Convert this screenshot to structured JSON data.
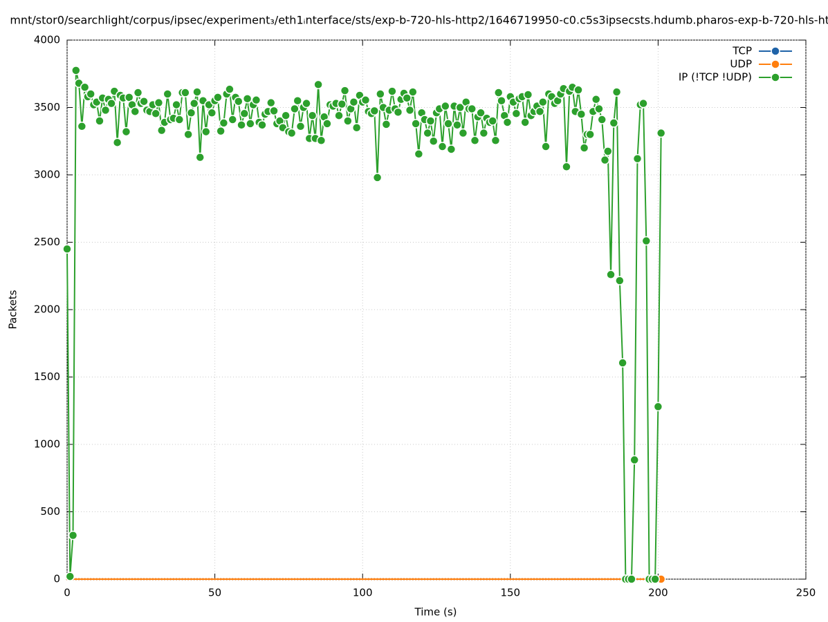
{
  "chart_data": {
    "type": "line",
    "title": "mnt/stor0/searchlight/corpus/ipsec/experiment₃/eth1ᵢnterface/sts/exp-b-720-hls-http2/1646719950-c0.c5s3ipsecsts.hdumb.pharos-exp-b-720-hls-http2",
    "x_label": "Time (s)",
    "y_label": "Packets",
    "xlim": [
      0,
      250
    ],
    "ylim": [
      0,
      4000
    ],
    "xticks": [
      0,
      50,
      100,
      150,
      200,
      250
    ],
    "yticks": [
      0,
      500,
      1000,
      1500,
      2000,
      2500,
      3000,
      3500,
      4000
    ],
    "grid": true,
    "legend": "top-right",
    "x": [
      0,
      1,
      2,
      3,
      4,
      5,
      6,
      7,
      8,
      9,
      10,
      11,
      12,
      13,
      14,
      15,
      16,
      17,
      18,
      19,
      20,
      21,
      22,
      23,
      24,
      25,
      26,
      27,
      28,
      29,
      30,
      31,
      32,
      33,
      34,
      35,
      36,
      37,
      38,
      39,
      40,
      41,
      42,
      43,
      44,
      45,
      46,
      47,
      48,
      49,
      50,
      51,
      52,
      53,
      54,
      55,
      56,
      57,
      58,
      59,
      60,
      61,
      62,
      63,
      64,
      65,
      66,
      67,
      68,
      69,
      70,
      71,
      72,
      73,
      74,
      75,
      76,
      77,
      78,
      79,
      80,
      81,
      82,
      83,
      84,
      85,
      86,
      87,
      88,
      89,
      90,
      91,
      92,
      93,
      94,
      95,
      96,
      97,
      98,
      99,
      100,
      101,
      102,
      103,
      104,
      105,
      106,
      107,
      108,
      109,
      110,
      111,
      112,
      113,
      114,
      115,
      116,
      117,
      118,
      119,
      120,
      121,
      122,
      123,
      124,
      125,
      126,
      127,
      128,
      129,
      130,
      131,
      132,
      133,
      134,
      135,
      136,
      137,
      138,
      139,
      140,
      141,
      142,
      143,
      144,
      145,
      146,
      147,
      148,
      149,
      150,
      151,
      152,
      153,
      154,
      155,
      156,
      157,
      158,
      159,
      160,
      161,
      162,
      163,
      164,
      165,
      166,
      167,
      168,
      169,
      170,
      171,
      172,
      173,
      174,
      175,
      176,
      177,
      178,
      179,
      180,
      181,
      182,
      183,
      184,
      185,
      186,
      187,
      188,
      189,
      190,
      191,
      192,
      193,
      194,
      195,
      196,
      197,
      198,
      199,
      200,
      201
    ],
    "series": [
      {
        "name": "TCP",
        "color": "#1f63a8",
        "values": [
          0,
          0,
          0,
          0,
          0,
          0,
          0,
          0,
          0,
          0,
          0,
          0,
          0,
          0,
          0,
          0,
          0,
          0,
          0,
          0,
          0,
          0,
          0,
          0,
          0,
          0,
          0,
          0,
          0,
          0,
          0,
          0,
          0,
          0,
          0,
          0,
          0,
          0,
          0,
          0,
          0,
          0,
          0,
          0,
          0,
          0,
          0,
          0,
          0,
          0,
          0,
          0,
          0,
          0,
          0,
          0,
          0,
          0,
          0,
          0,
          0,
          0,
          0,
          0,
          0,
          0,
          0,
          0,
          0,
          0,
          0,
          0,
          0,
          0,
          0,
          0,
          0,
          0,
          0,
          0,
          0,
          0,
          0,
          0,
          0,
          0,
          0,
          0,
          0,
          0,
          0,
          0,
          0,
          0,
          0,
          0,
          0,
          0,
          0,
          0,
          0,
          0,
          0,
          0,
          0,
          0,
          0,
          0,
          0,
          0,
          0,
          0,
          0,
          0,
          0,
          0,
          0,
          0,
          0,
          0,
          0,
          0,
          0,
          0,
          0,
          0,
          0,
          0,
          0,
          0,
          0,
          0,
          0,
          0,
          0,
          0,
          0,
          0,
          0,
          0,
          0,
          0,
          0,
          0,
          0,
          0,
          0,
          0,
          0,
          0,
          0,
          0,
          0,
          0,
          0,
          0,
          0,
          0,
          0,
          0,
          0,
          0,
          0,
          0,
          0,
          0,
          0,
          0,
          0,
          0,
          0,
          0,
          0,
          0,
          0,
          0,
          0,
          0,
          0,
          0,
          0,
          0,
          0,
          0,
          0,
          0,
          0,
          0,
          0,
          0,
          0,
          0,
          0,
          0,
          0,
          0,
          0,
          0,
          0,
          0,
          0,
          0
        ]
      },
      {
        "name": "UDP",
        "color": "#ff7f0e",
        "values": [
          0,
          0,
          0,
          0,
          0,
          0,
          0,
          0,
          0,
          0,
          0,
          0,
          0,
          0,
          0,
          0,
          0,
          0,
          0,
          0,
          0,
          0,
          0,
          0,
          0,
          0,
          0,
          0,
          0,
          0,
          0,
          0,
          0,
          0,
          0,
          0,
          0,
          0,
          0,
          0,
          0,
          0,
          0,
          0,
          0,
          0,
          0,
          0,
          0,
          0,
          0,
          0,
          0,
          0,
          0,
          0,
          0,
          0,
          0,
          0,
          0,
          0,
          0,
          0,
          0,
          0,
          0,
          0,
          0,
          0,
          0,
          0,
          0,
          0,
          0,
          0,
          0,
          0,
          0,
          0,
          0,
          0,
          0,
          0,
          0,
          0,
          0,
          0,
          0,
          0,
          0,
          0,
          0,
          0,
          0,
          0,
          0,
          0,
          0,
          0,
          0,
          0,
          0,
          0,
          0,
          0,
          0,
          0,
          0,
          0,
          0,
          0,
          0,
          0,
          0,
          0,
          0,
          0,
          0,
          0,
          0,
          0,
          0,
          0,
          0,
          0,
          0,
          0,
          0,
          0,
          0,
          0,
          0,
          0,
          0,
          0,
          0,
          0,
          0,
          0,
          0,
          0,
          0,
          0,
          0,
          0,
          0,
          0,
          0,
          0,
          0,
          0,
          0,
          0,
          0,
          0,
          0,
          0,
          0,
          0,
          0,
          0,
          0,
          0,
          0,
          0,
          0,
          0,
          0,
          0,
          0,
          0,
          0,
          0,
          0,
          0,
          0,
          0,
          0,
          0,
          0,
          0,
          0,
          0,
          0,
          0,
          0,
          0,
          0,
          0,
          0,
          0,
          0,
          0,
          0,
          0,
          0,
          0,
          0,
          0,
          0,
          0
        ]
      },
      {
        "name": "IP (!TCP  !UDP)",
        "color": "#2ca02c",
        "values": [
          2450,
          20,
          325,
          3775,
          3680,
          3360,
          3650,
          3580,
          3600,
          3520,
          3540,
          3400,
          3570,
          3480,
          3560,
          3530,
          3620,
          3240,
          3590,
          3570,
          3320,
          3575,
          3520,
          3470,
          3610,
          3530,
          3545,
          3480,
          3470,
          3520,
          3455,
          3535,
          3330,
          3390,
          3600,
          3410,
          3420,
          3520,
          3410,
          3610,
          3610,
          3300,
          3460,
          3530,
          3615,
          3130,
          3550,
          3320,
          3520,
          3460,
          3550,
          3575,
          3325,
          3385,
          3600,
          3635,
          3410,
          3575,
          3545,
          3370,
          3455,
          3565,
          3380,
          3520,
          3555,
          3390,
          3370,
          3450,
          3470,
          3535,
          3475,
          3380,
          3400,
          3350,
          3440,
          3320,
          3310,
          3490,
          3550,
          3360,
          3500,
          3530,
          3270,
          3440,
          3270,
          3670,
          3255,
          3430,
          3380,
          3520,
          3510,
          3530,
          3440,
          3525,
          3625,
          3400,
          3490,
          3540,
          3350,
          3590,
          3540,
          3555,
          3470,
          3455,
          3475,
          2980,
          3600,
          3500,
          3375,
          3480,
          3620,
          3490,
          3465,
          3560,
          3605,
          3570,
          3480,
          3615,
          3380,
          3155,
          3460,
          3410,
          3310,
          3400,
          3250,
          3460,
          3490,
          3210,
          3510,
          3380,
          3190,
          3510,
          3370,
          3500,
          3310,
          3540,
          3490,
          3490,
          3255,
          3430,
          3460,
          3310,
          3420,
          3390,
          3400,
          3255,
          3610,
          3550,
          3440,
          3390,
          3580,
          3540,
          3455,
          3565,
          3580,
          3390,
          3595,
          3440,
          3470,
          3510,
          3470,
          3540,
          3210,
          3600,
          3580,
          3530,
          3550,
          3600,
          3640,
          3060,
          3620,
          3650,
          3470,
          3630,
          3450,
          3200,
          3300,
          3300,
          3470,
          3560,
          3490,
          3410,
          3110,
          3175,
          2260,
          3385,
          3615,
          2215,
          1605,
          0,
          0,
          0,
          885,
          3120,
          3520,
          3530,
          2510,
          0,
          0,
          0,
          1280,
          3310
        ]
      }
    ]
  }
}
